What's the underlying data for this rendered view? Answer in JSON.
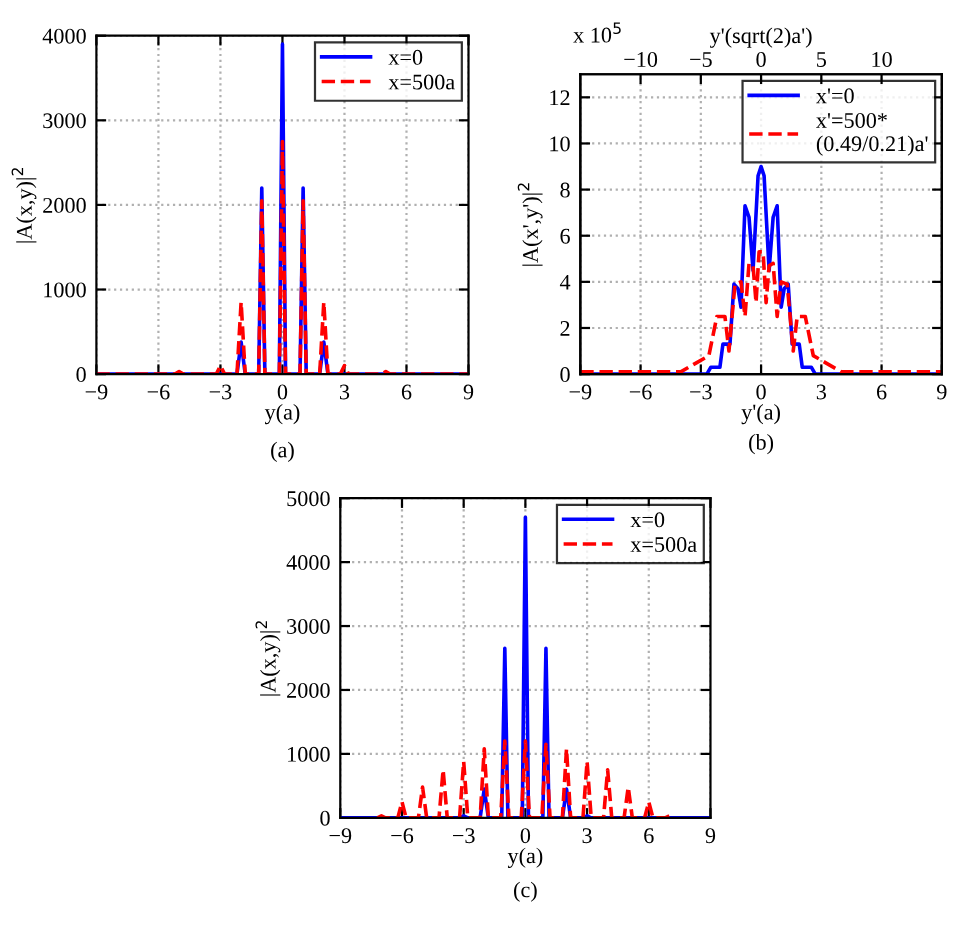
{
  "chart_data": [
    {
      "type": "line",
      "xlabel": "y(a)",
      "ylabel": "|A(x,y)|$^{2}$",
      "xlim": [
        -9,
        9
      ],
      "xticks": [
        -9,
        -6,
        -3,
        0,
        3,
        6,
        9
      ],
      "ylim": [
        0,
        4000
      ],
      "yticks": [
        0,
        1000,
        2000,
        3000,
        4000
      ],
      "grid": true,
      "legend": "top right",
      "annotations": [
        "(a)"
      ],
      "series": [
        {
          "name": "x=0",
          "color": "#0000ff",
          "line_style": "solid",
          "x": [
            -9,
            -2.2,
            -2,
            -1.8,
            -1.15,
            -1,
            -0.85,
            -0.15,
            0,
            0.15,
            0.85,
            1,
            1.15,
            1.8,
            2,
            2.2,
            9
          ],
          "values": [
            0,
            0,
            380,
            0,
            0,
            2200,
            0,
            0,
            3900,
            0,
            0,
            2200,
            0,
            0,
            380,
            0,
            0
          ]
        },
        {
          "name": "x=500a",
          "color": "#ff0000",
          "line_style": "dashed",
          "x": [
            -9,
            -5.2,
            -5,
            -4.8,
            -3.2,
            -3,
            -2.8,
            -2.2,
            -2,
            -1.8,
            -1.15,
            -1,
            -0.85,
            -0.15,
            0,
            0.15,
            0.85,
            1,
            1.15,
            1.8,
            2,
            2.2,
            2.8,
            3,
            3.2,
            4.8,
            5,
            5.2,
            9
          ],
          "values": [
            0,
            0,
            30,
            0,
            0,
            100,
            0,
            0,
            850,
            0,
            0,
            2050,
            0,
            0,
            2750,
            0,
            0,
            2050,
            0,
            0,
            850,
            0,
            0,
            100,
            0,
            0,
            30,
            0,
            0
          ]
        }
      ]
    },
    {
      "type": "line",
      "xlabel": "y'(a)",
      "ylabel": "|A(x',y')|$^{2}$",
      "x2label": "y'(sqrt(2)a')",
      "xlim": [
        -9,
        9
      ],
      "xticks": [
        -9,
        -6,
        -3,
        0,
        3,
        6,
        9
      ],
      "x2lim": [
        -15,
        15
      ],
      "x2ticks": [
        -10,
        -5,
        0,
        5,
        10
      ],
      "ylim": [
        0,
        13
      ],
      "yticks": [
        0,
        2,
        4,
        6,
        8,
        10,
        12
      ],
      "grid": true,
      "legend": "top right",
      "annotations": [
        "(b)",
        "x 10$^{5}$"
      ],
      "series": [
        {
          "name": "x'=0",
          "color": "#0000ff",
          "line_style": "solid",
          "x": [
            -9,
            -2.7,
            -2.5,
            -2.05,
            -1.9,
            -1.55,
            -1.35,
            -1.15,
            -1.0,
            -0.8,
            -0.6,
            -0.4,
            -0.15,
            0,
            0.15,
            0.4,
            0.6,
            0.8,
            1.0,
            1.15,
            1.35,
            1.55,
            1.9,
            2.05,
            2.5,
            2.7,
            9
          ],
          "values": [
            0,
            0,
            0.3,
            0.3,
            1.3,
            1.3,
            3.9,
            3.7,
            2.9,
            7.3,
            6.8,
            4.5,
            8.6,
            9.0,
            8.6,
            4.5,
            6.8,
            7.3,
            2.9,
            3.7,
            3.9,
            1.3,
            1.3,
            0.3,
            0.3,
            0,
            0
          ]
        },
        {
          "name": "x'=500*\n(0.49/0.21)a'",
          "color": "#ff0000",
          "line_style": "dashed",
          "x": [
            -9,
            -4,
            -3.2,
            -2.6,
            -2.2,
            -1.8,
            -1.6,
            -1.3,
            -1.0,
            -0.8,
            -0.6,
            -0.4,
            -0.25,
            -0.1,
            0,
            0.1,
            0.25,
            0.4,
            0.6,
            0.8,
            1.0,
            1.3,
            1.6,
            1.8,
            2.2,
            2.6,
            3.2,
            4,
            9
          ],
          "values": [
            0.1,
            0.1,
            0.5,
            0.8,
            2.5,
            2.5,
            1.0,
            3.9,
            4.0,
            2.5,
            4.8,
            4.7,
            3.1,
            5.3,
            5.3,
            5.3,
            3.1,
            4.7,
            4.8,
            2.5,
            4.0,
            3.9,
            1.0,
            2.5,
            2.5,
            0.8,
            0.5,
            0.1,
            0.1
          ]
        }
      ]
    },
    {
      "type": "line",
      "xlabel": "y(a)",
      "ylabel": "|A(x,y)|$^{2}$",
      "xlim": [
        -9,
        9
      ],
      "xticks": [
        -9,
        -6,
        -3,
        0,
        3,
        6,
        9
      ],
      "ylim": [
        0,
        5000
      ],
      "yticks": [
        0,
        1000,
        2000,
        3000,
        4000,
        5000
      ],
      "grid": true,
      "legend": "top right",
      "annotations": [
        "(c)"
      ],
      "series": [
        {
          "name": "x=0",
          "color": "#0000ff",
          "line_style": "solid",
          "x": [
            -9,
            -3.2,
            -3,
            -2.8,
            -2.2,
            -2,
            -1.8,
            -1.15,
            -1,
            -0.85,
            -0.15,
            0,
            0.15,
            0.85,
            1,
            1.15,
            1.8,
            2,
            2.2,
            2.8,
            3,
            3.2,
            9
          ],
          "values": [
            0,
            0,
            30,
            0,
            0,
            450,
            0,
            0,
            2650,
            0,
            0,
            4700,
            0,
            0,
            2650,
            0,
            0,
            450,
            0,
            0,
            30,
            0,
            0
          ]
        },
        {
          "name": "x=500a",
          "color": "#ff0000",
          "line_style": "dashed",
          "x": [
            -7.2,
            -7,
            -6.8,
            -6.2,
            -6,
            -5.8,
            -5.2,
            -5,
            -4.8,
            -4.2,
            -4,
            -3.8,
            -3.2,
            -3,
            -2.8,
            -2.2,
            -2,
            -1.8,
            -1.2,
            -1,
            -0.8,
            -0.2,
            0,
            0.2,
            0.8,
            1,
            1.2,
            1.8,
            2,
            2.2,
            2.8,
            3,
            3.2,
            3.8,
            4,
            4.2,
            4.8,
            5,
            5.2,
            5.8,
            6,
            6.2,
            6.8,
            7,
            7.2
          ],
          "values": [
            0,
            30,
            0,
            0,
            250,
            0,
            0,
            480,
            0,
            0,
            750,
            0,
            0,
            880,
            0,
            0,
            1080,
            0,
            0,
            1200,
            0,
            0,
            1200,
            0,
            0,
            1150,
            0,
            0,
            1080,
            0,
            0,
            880,
            0,
            0,
            750,
            0,
            0,
            480,
            0,
            0,
            250,
            0,
            0,
            30,
            0
          ]
        }
      ]
    }
  ]
}
